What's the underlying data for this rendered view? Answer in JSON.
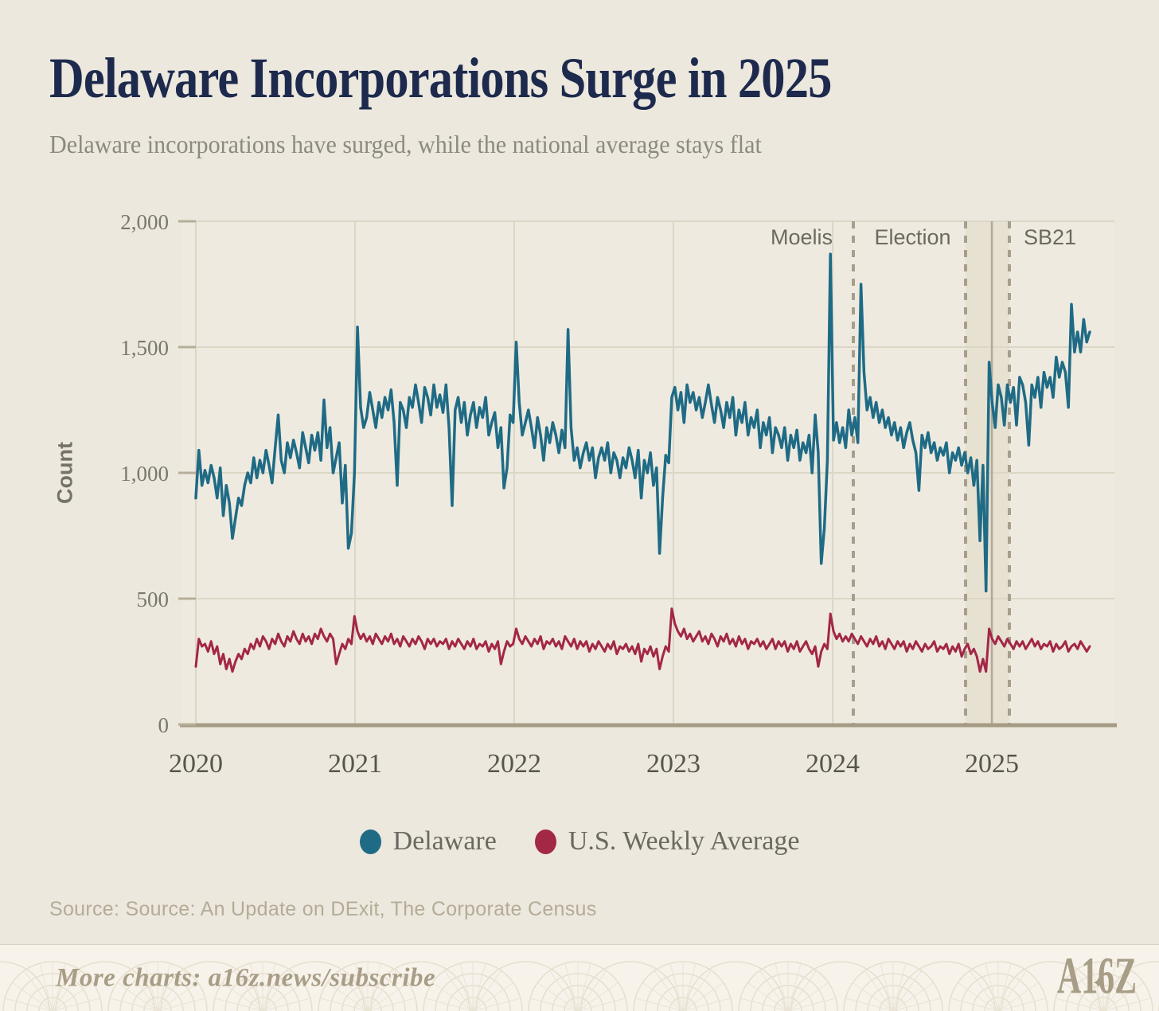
{
  "page": {
    "title": "Delaware Incorporations Surge in 2025",
    "subtitle": "Delaware incorporations have surged, while the national average stays flat",
    "source": "Source: Source: An Update on DExit, The Corporate Census",
    "footer": {
      "text": "More charts: a16z.news/subscribe",
      "logo": "A16Z",
      "logo_star": "✦"
    },
    "colors": {
      "background": "#ece8de",
      "plot_background": "#eeeae0",
      "gridline": "#dcd6c5",
      "axis_line": "#a69c85",
      "band": "#e7e1d2",
      "dashed_line": "#a79e8c",
      "solid_event_line": "#b1a898",
      "title": "#1d2a4d",
      "footer_tan": "#a89d86"
    }
  },
  "chart_data": {
    "type": "line",
    "title": "Delaware Incorporations Surge in 2025",
    "subtitle": "Delaware incorporations have surged, while the national average stays flat",
    "xlabel": "",
    "ylabel": "Count",
    "ylim": [
      0,
      2000
    ],
    "grid": true,
    "legend_position": "bottom",
    "x_unit": "weekly, starting Jan 2020",
    "x_start_year": 2020,
    "weeks_per_year": 52.18,
    "y_ticks": [
      {
        "v": 0,
        "label": "0"
      },
      {
        "v": 500,
        "label": "500"
      },
      {
        "v": 1000,
        "label": "1,000"
      },
      {
        "v": 1500,
        "label": "1,500"
      },
      {
        "v": 2000,
        "label": "2,000"
      }
    ],
    "x_ticks": [
      {
        "t": 2020,
        "label": "2020"
      },
      {
        "t": 2021,
        "label": "2021"
      },
      {
        "t": 2022,
        "label": "2022"
      },
      {
        "t": 2023,
        "label": "2023"
      },
      {
        "t": 2024,
        "label": "2024"
      },
      {
        "t": 2025,
        "label": "2025"
      }
    ],
    "annotations": {
      "events": [
        {
          "label": "Moelis",
          "year": 2024.13,
          "align": "end"
        },
        {
          "label": "Election",
          "year": 2024.835,
          "align": "middle"
        },
        {
          "label": "SB21",
          "year": 2025.11,
          "align": "start"
        }
      ],
      "shaded_band": {
        "from_year": 2024.835,
        "to_year": 2025.11
      },
      "solid_line_year": 2025.0
    },
    "series": [
      {
        "name": "Delaware",
        "color": "#1f6b85",
        "values": [
          900,
          1090,
          950,
          1010,
          960,
          1030,
          980,
          900,
          1020,
          830,
          950,
          880,
          740,
          820,
          900,
          870,
          950,
          1000,
          960,
          1060,
          980,
          1050,
          1000,
          1090,
          1030,
          960,
          1100,
          1230,
          1050,
          1000,
          1120,
          1060,
          1130,
          1080,
          1020,
          1160,
          1100,
          1040,
          1150,
          1090,
          1160,
          1050,
          1290,
          1100,
          1180,
          1000,
          1060,
          1120,
          880,
          1030,
          700,
          760,
          1000,
          1580,
          1260,
          1180,
          1220,
          1320,
          1250,
          1180,
          1280,
          1220,
          1300,
          1250,
          1330,
          1200,
          950,
          1280,
          1250,
          1180,
          1300,
          1260,
          1350,
          1280,
          1200,
          1340,
          1300,
          1230,
          1350,
          1260,
          1310,
          1240,
          1350,
          1180,
          870,
          1250,
          1300,
          1200,
          1280,
          1150,
          1230,
          1280,
          1180,
          1260,
          1220,
          1300,
          1150,
          1200,
          1240,
          1100,
          1180,
          940,
          1020,
          1230,
          1200,
          1520,
          1280,
          1150,
          1200,
          1250,
          1180,
          1100,
          1220,
          1150,
          1050,
          1180,
          1120,
          1200,
          1150,
          1080,
          1170,
          1100,
          1570,
          1180,
          1050,
          1100,
          1020,
          1080,
          1120,
          1050,
          1100,
          980,
          1060,
          1100,
          1050,
          1120,
          1000,
          1080,
          1050,
          980,
          1060,
          1020,
          1100,
          1050,
          980,
          1090,
          900,
          1050,
          1000,
          1080,
          950,
          1020,
          680,
          900,
          1070,
          1040,
          1300,
          1340,
          1250,
          1320,
          1200,
          1350,
          1280,
          1320,
          1250,
          1300,
          1220,
          1280,
          1350,
          1270,
          1200,
          1300,
          1250,
          1180,
          1280,
          1220,
          1300,
          1150,
          1250,
          1200,
          1280,
          1150,
          1220,
          1180,
          1250,
          1100,
          1200,
          1150,
          1220,
          1080,
          1180,
          1150,
          1100,
          1180,
          1050,
          1150,
          1100,
          1170,
          1050,
          1120,
          1080,
          1150,
          1000,
          1230,
          1080,
          640,
          780,
          1050,
          1870,
          1130,
          1200,
          1120,
          1180,
          1100,
          1250,
          1150,
          1220,
          1120,
          1750,
          1400,
          1250,
          1300,
          1220,
          1280,
          1200,
          1250,
          1180,
          1220,
          1150,
          1200,
          1130,
          1180,
          1100,
          1160,
          1200,
          1130,
          1080,
          930,
          1150,
          1100,
          1160,
          1080,
          1120,
          1050,
          1100,
          1070,
          1120,
          1000,
          1080,
          1050,
          1100,
          1030,
          1080,
          1000,
          1060,
          950,
          1050,
          730,
          1030,
          530,
          1440,
          1280,
          1180,
          1350,
          1300,
          1190,
          1350,
          1280,
          1340,
          1190,
          1380,
          1350,
          1280,
          1110,
          1350,
          1300,
          1380,
          1260,
          1400,
          1340,
          1380,
          1300,
          1460,
          1380,
          1440,
          1400,
          1260,
          1670,
          1480,
          1560,
          1480,
          1610,
          1520,
          1560
        ]
      },
      {
        "name": "U.S. Weekly Average",
        "color": "#a32747",
        "values": [
          230,
          340,
          310,
          320,
          290,
          330,
          280,
          310,
          240,
          280,
          220,
          260,
          210,
          250,
          280,
          260,
          300,
          280,
          320,
          300,
          340,
          310,
          350,
          330,
          300,
          340,
          320,
          360,
          330,
          310,
          350,
          330,
          370,
          340,
          320,
          360,
          330,
          350,
          320,
          360,
          340,
          380,
          350,
          330,
          360,
          340,
          240,
          280,
          320,
          300,
          340,
          320,
          430,
          370,
          340,
          360,
          330,
          350,
          320,
          360,
          340,
          320,
          350,
          330,
          360,
          320,
          340,
          310,
          350,
          330,
          310,
          340,
          320,
          350,
          330,
          300,
          340,
          320,
          340,
          310,
          330,
          320,
          340,
          300,
          330,
          310,
          340,
          320,
          300,
          330,
          310,
          340,
          300,
          320,
          310,
          330,
          290,
          320,
          300,
          330,
          240,
          290,
          330,
          310,
          320,
          380,
          340,
          320,
          350,
          330,
          310,
          340,
          320,
          350,
          300,
          330,
          320,
          340,
          310,
          330,
          300,
          350,
          330,
          310,
          340,
          300,
          330,
          310,
          330,
          290,
          320,
          300,
          330,
          310,
          290,
          320,
          300,
          330,
          280,
          310,
          300,
          320,
          290,
          310,
          280,
          320,
          250,
          300,
          280,
          310,
          270,
          300,
          220,
          270,
          310,
          290,
          460,
          400,
          370,
          350,
          380,
          340,
          360,
          330,
          350,
          370,
          330,
          350,
          320,
          360,
          340,
          310,
          350,
          330,
          360,
          320,
          340,
          310,
          350,
          320,
          340,
          300,
          330,
          320,
          340,
          310,
          330,
          300,
          320,
          340,
          300,
          330,
          310,
          330,
          290,
          320,
          300,
          330,
          290,
          310,
          330,
          300,
          280,
          310,
          230,
          290,
          320,
          300,
          440,
          370,
          340,
          360,
          330,
          350,
          330,
          360,
          340,
          320,
          350,
          330,
          310,
          340,
          320,
          350,
          310,
          330,
          300,
          340,
          320,
          300,
          330,
          310,
          330,
          290,
          320,
          300,
          330,
          310,
          290,
          320,
          300,
          310,
          330,
          290,
          310,
          300,
          320,
          280,
          310,
          290,
          320,
          270,
          300,
          320,
          280,
          300,
          270,
          210,
          260,
          210,
          380,
          340,
          320,
          350,
          330,
          310,
          340,
          320,
          300,
          330,
          310,
          330,
          300,
          320,
          340,
          310,
          330,
          300,
          320,
          310,
          330,
          290,
          320,
          300,
          310,
          330,
          290,
          310,
          320,
          300,
          330,
          310,
          290,
          310
        ]
      }
    ]
  }
}
